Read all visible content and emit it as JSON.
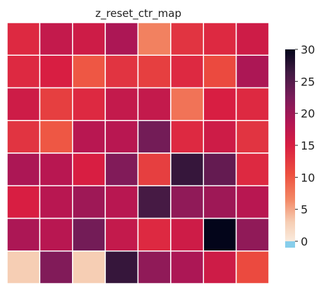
{
  "chart_data": {
    "type": "heatmap",
    "title": "z_reset_ctr_map",
    "xlabel": "",
    "ylabel": "",
    "rows": 8,
    "cols": 8,
    "values": [
      [
        14,
        17,
        16,
        19,
        7,
        13,
        14,
        16
      ],
      [
        14,
        15,
        10,
        13,
        12,
        14,
        11,
        19
      ],
      [
        16,
        12,
        14,
        17,
        17,
        8,
        15,
        14
      ],
      [
        13,
        10,
        18,
        18,
        23,
        14,
        16,
        13
      ],
      [
        19,
        18,
        15,
        22,
        12,
        27,
        24,
        14
      ],
      [
        15,
        18,
        20,
        18,
        26,
        21,
        20,
        18
      ],
      [
        19,
        18,
        23,
        17,
        14,
        16,
        30,
        21
      ],
      [
        3,
        22,
        3,
        27,
        21,
        19,
        16,
        11
      ]
    ],
    "colorbar": {
      "vmin": -1,
      "vmax": 30,
      "ticks": [
        "0",
        "5",
        "10",
        "15",
        "20",
        "25",
        "30"
      ],
      "under_label": "-1"
    },
    "grid_lines": true,
    "colors": {
      "cell_border": "#ffffff",
      "under": "#87ceeb"
    }
  }
}
